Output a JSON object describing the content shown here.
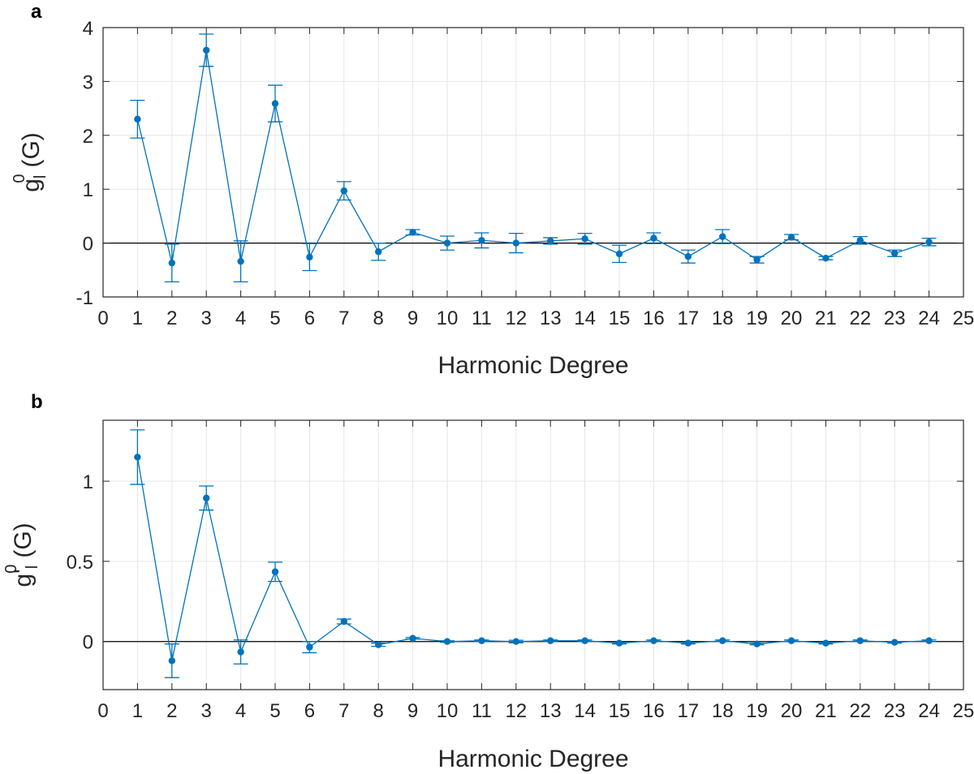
{
  "chart_data": [
    {
      "panel_label": "a",
      "type": "scatter",
      "marker": "filled-circle",
      "connected": true,
      "error_bars": true,
      "zero_line": true,
      "grid": true,
      "xlabel": "Harmonic Degree",
      "ylabel": {
        "base": "g",
        "sup": "0",
        "sub": "l",
        "unit": "(G)"
      },
      "xlim": [
        0,
        25
      ],
      "ylim": [
        -1,
        4
      ],
      "xticks": [
        0,
        1,
        2,
        3,
        4,
        5,
        6,
        7,
        8,
        9,
        10,
        11,
        12,
        13,
        14,
        15,
        16,
        17,
        18,
        19,
        20,
        21,
        22,
        23,
        24,
        25
      ],
      "yticks": [
        -1,
        0,
        1,
        2,
        3,
        4
      ],
      "ytick_labels": [
        "-1",
        "0",
        "1",
        "2",
        "3",
        "4"
      ],
      "series": [
        {
          "x": [
            1,
            2,
            3,
            4,
            5,
            6,
            7,
            8,
            9,
            10,
            11,
            12,
            13,
            14,
            15,
            16,
            17,
            18,
            19,
            20,
            21,
            22,
            23,
            24
          ],
          "values": [
            2.3,
            -0.37,
            3.58,
            -0.34,
            2.59,
            -0.26,
            0.97,
            -0.16,
            0.2,
            0.0,
            0.05,
            0.0,
            0.04,
            0.08,
            -0.2,
            0.09,
            -0.25,
            0.12,
            -0.31,
            0.11,
            -0.28,
            0.05,
            -0.19,
            0.02
          ],
          "error": [
            0.35,
            0.35,
            0.3,
            0.38,
            0.34,
            0.25,
            0.17,
            0.16,
            0.05,
            0.13,
            0.14,
            0.18,
            0.06,
            0.1,
            0.16,
            0.1,
            0.12,
            0.13,
            0.06,
            0.05,
            0.03,
            0.07,
            0.06,
            0.07
          ]
        }
      ]
    },
    {
      "panel_label": "b",
      "type": "scatter",
      "marker": "filled-circle",
      "connected": true,
      "error_bars": true,
      "zero_line": true,
      "grid": true,
      "xlabel": "Harmonic Degree",
      "ylabel": {
        "base": "g'",
        "sup": "0",
        "sub": "l",
        "unit": "(G)"
      },
      "xlim": [
        0,
        25
      ],
      "ylim": [
        -0.3,
        1.38
      ],
      "xticks": [
        0,
        1,
        2,
        3,
        4,
        5,
        6,
        7,
        8,
        9,
        10,
        11,
        12,
        13,
        14,
        15,
        16,
        17,
        18,
        19,
        20,
        21,
        22,
        23,
        24,
        25
      ],
      "yticks": [
        0,
        0.5,
        1
      ],
      "ytick_labels": [
        "0",
        "0.5",
        "1"
      ],
      "series": [
        {
          "x": [
            1,
            2,
            3,
            4,
            5,
            6,
            7,
            8,
            9,
            10,
            11,
            12,
            13,
            14,
            15,
            16,
            17,
            18,
            19,
            20,
            21,
            22,
            23,
            24
          ],
          "values": [
            1.15,
            -0.12,
            0.895,
            -0.065,
            0.435,
            -0.035,
            0.125,
            -0.02,
            0.02,
            0.0,
            0.005,
            0.0,
            0.005,
            0.005,
            -0.01,
            0.005,
            -0.01,
            0.005,
            -0.015,
            0.005,
            -0.01,
            0.005,
            -0.005,
            0.005
          ],
          "error": [
            0.17,
            0.105,
            0.075,
            0.075,
            0.06,
            0.035,
            0.015,
            0.01,
            0.005,
            0.005,
            0.005,
            0.008,
            0.005,
            0.005,
            0.005,
            0.005,
            0.005,
            0.005,
            0.005,
            0.005,
            0.005,
            0.005,
            0.005,
            0.005
          ]
        }
      ]
    }
  ],
  "colors": {
    "series": "#0072bd",
    "grid": "#e6e6e6",
    "axes": "#262626",
    "zero_line": "#000000"
  }
}
